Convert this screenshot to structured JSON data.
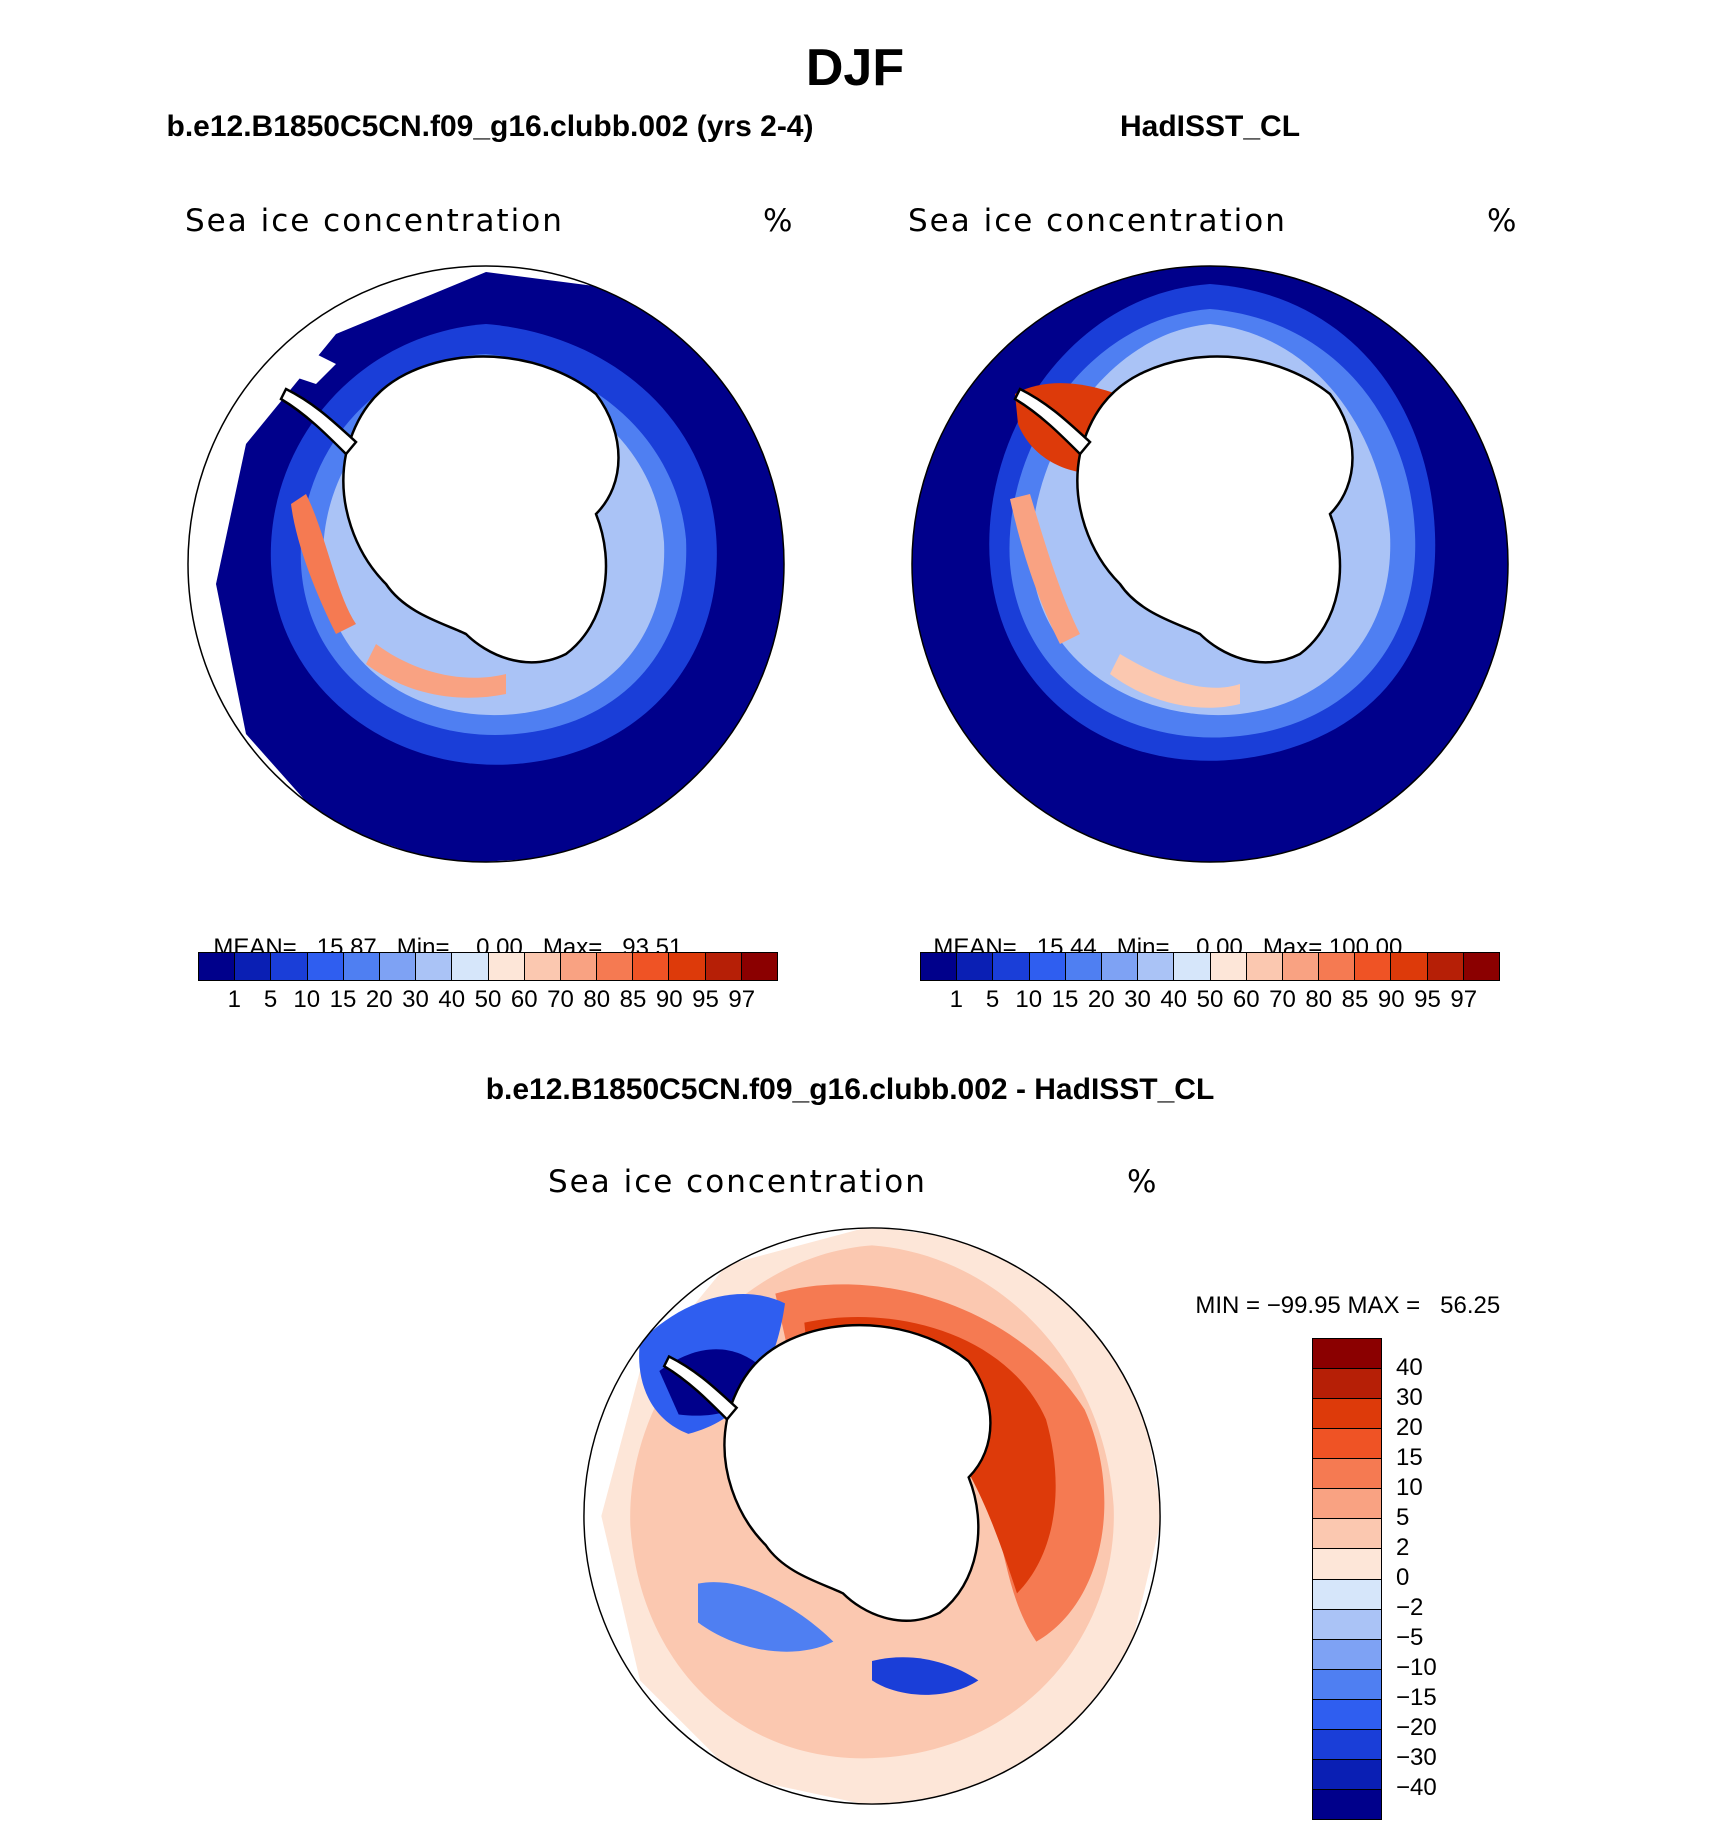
{
  "figure": {
    "season": "DJF",
    "panel_left_title": "b.e12.B1850C5CN.f09_g16.clubb.002 (yrs 2-4)",
    "panel_right_title": "HadISST_CL",
    "panel_bottom_title": "b.e12.B1850C5CN.f09_g16.clubb.002 - HadISST_CL"
  },
  "maps": {
    "left": {
      "variable": "Sea ice concentration",
      "units": "%",
      "mean_label": "MEAN=",
      "mean": "15.87",
      "min_label": "Min=",
      "min": "0.00",
      "max_label": "Max=",
      "max": "93.51"
    },
    "right": {
      "variable": "Sea ice concentration",
      "units": "%",
      "mean_label": "MEAN=",
      "mean": "15.44",
      "min_label": "Min=",
      "min": "0.00",
      "max_label": "Max=",
      "max": "100.00"
    },
    "bottom": {
      "variable": "Sea ice concentration",
      "units": "%",
      "min_label": "MIN =",
      "min": "−99.95",
      "max_label": "MAX =",
      "max": "56.25"
    }
  },
  "colorbar_concentration": {
    "labels": [
      "1",
      "5",
      "10",
      "15",
      "20",
      "30",
      "40",
      "50",
      "60",
      "70",
      "80",
      "85",
      "90",
      "95",
      "97"
    ],
    "colors": [
      "#00008b",
      "#0a1fb4",
      "#1a3ed8",
      "#2f5ef0",
      "#4f7ff2",
      "#7ea2f4",
      "#aac3f6",
      "#d6e6fa",
      "#fde6d8",
      "#fbc8b0",
      "#f9a282",
      "#f57a52",
      "#ef5325",
      "#dd3a0a",
      "#b61f06",
      "#8b0000"
    ]
  },
  "colorbar_difference": {
    "labels": [
      "40",
      "30",
      "20",
      "15",
      "10",
      "5",
      "2",
      "0",
      "−2",
      "−5",
      "−10",
      "−15",
      "−20",
      "−30",
      "−40"
    ],
    "colors": [
      "#8b0000",
      "#b61f06",
      "#dd3a0a",
      "#ef5325",
      "#f57a52",
      "#f9a282",
      "#fbc8b0",
      "#fde6d8",
      "#d6e6fa",
      "#aac3f6",
      "#7ea2f4",
      "#4f7ff2",
      "#2f5ef0",
      "#1a3ed8",
      "#0a1fb4",
      "#00008b"
    ]
  }
}
